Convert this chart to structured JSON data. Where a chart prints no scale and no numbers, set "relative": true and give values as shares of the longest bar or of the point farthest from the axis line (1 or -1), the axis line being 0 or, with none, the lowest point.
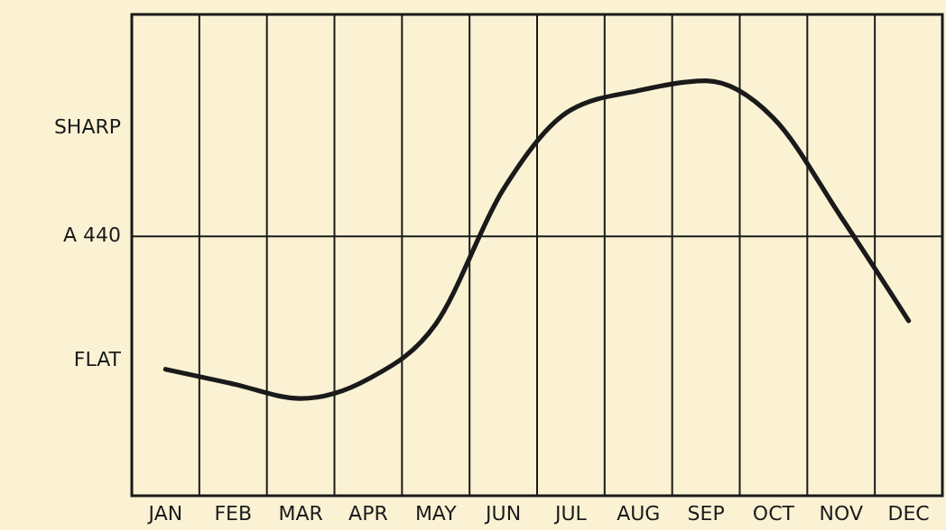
{
  "chart_data": {
    "type": "line",
    "relative": true,
    "categories": [
      "JAN",
      "FEB",
      "MAR",
      "APR",
      "MAY",
      "JUN",
      "JUL",
      "AUG",
      "SEP",
      "OCT",
      "NOV",
      "DEC"
    ],
    "series": [
      {
        "color": "#1a1a1a",
        "values": [
          -0.82,
          -0.91,
          -1,
          -0.88,
          -0.54,
          0.29,
          0.78,
          0.9,
          0.96,
          0.73,
          0.12,
          -0.52
        ]
      }
    ],
    "ref_lines": [
      {
        "axis": "y",
        "value": 0,
        "label": "A 440",
        "color": "#1a1a1a"
      }
    ],
    "annotations": [
      "SHARP",
      "FLAT"
    ],
    "grid": "x",
    "line_style": "solid"
  }
}
